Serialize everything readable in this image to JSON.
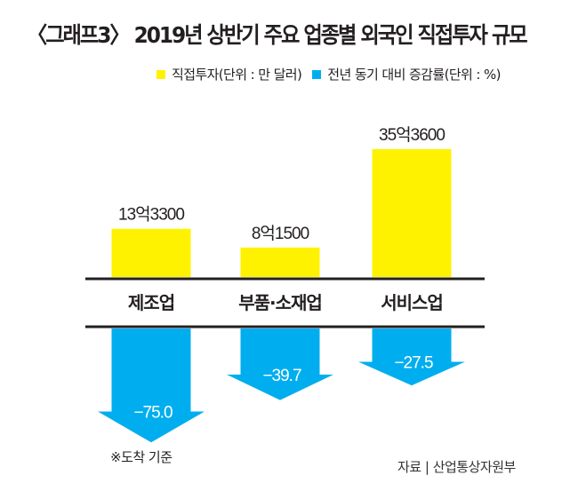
{
  "title": "〈그래프3〉 2019년 상반기 주요 업종별 외국인 직접투자 규모",
  "legend": [
    {
      "label": "직접투자(단위 : 만 달러)",
      "color": "#fff200"
    },
    {
      "label": "전년 동기 대비 증감률(단위 : %)",
      "color": "#00aeef"
    }
  ],
  "note": "※도착 기준",
  "source": "자료 | 산업통상자원부",
  "chart_data": {
    "type": "bar",
    "title": "〈그래프3〉 2019년 상반기 주요 업종별 외국인 직접투자 규모",
    "categories": [
      "제조업",
      "부품·소재업",
      "서비스업"
    ],
    "series": [
      {
        "name": "직접투자(단위 : 만 달러)",
        "unit": "만 달러",
        "values": [
          133300,
          81500,
          353600
        ],
        "labels": [
          "13억3300",
          "8억1500",
          "35억3600"
        ],
        "color": "#fff200"
      },
      {
        "name": "전년 동기 대비 증감률(단위 : %)",
        "unit": "%",
        "values": [
          -75.0,
          -39.7,
          -27.5
        ],
        "labels": [
          "−75.0",
          "−39.7",
          "−27.5"
        ],
        "color": "#00aeef"
      }
    ],
    "legend_position": "top-right",
    "grid": false
  }
}
